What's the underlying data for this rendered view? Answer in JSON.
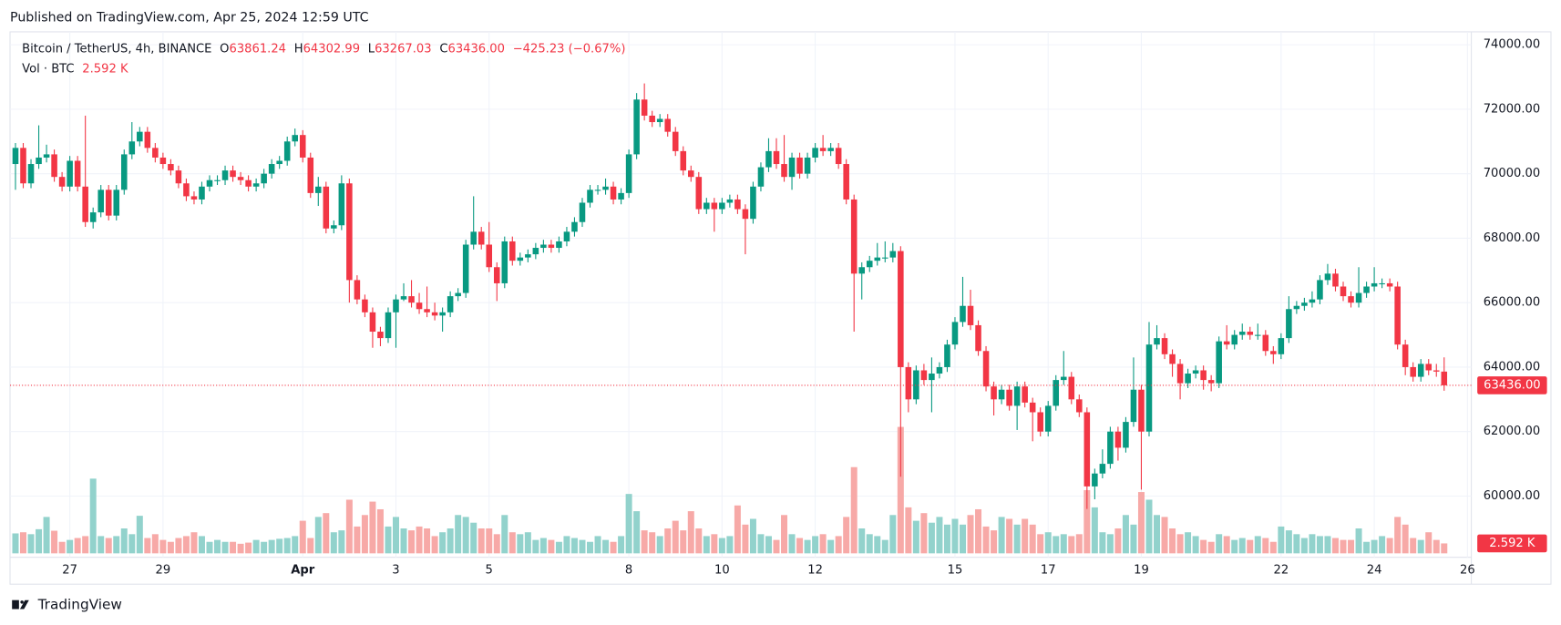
{
  "header": {
    "published": "Published on TradingView.com, Apr 25, 2024 12:59 UTC",
    "brand": "TradingView"
  },
  "chart_data": {
    "type": "candlestick",
    "title": "Bitcoin / TetherUS, 4h, BINANCE",
    "legend_prefixes": [
      "O",
      "H",
      "L",
      "C"
    ],
    "change": "−425.23 (−0.67%)",
    "close_label": "63436.00",
    "volume_title": "Vol · BTC",
    "volume_label": "2.592 K",
    "up_color": "#089981",
    "down_color": "#f23645",
    "volume_up_color": "#92d2cc",
    "volume_down_color": "#f7a9a7",
    "open": [
      70300,
      70800,
      69700,
      70300,
      70500,
      70600,
      69900,
      69600,
      70400,
      69600,
      68500,
      68800,
      69500,
      68700,
      69500,
      70600,
      71000,
      71300,
      70800,
      70500,
      70300,
      70100,
      69700,
      69300,
      69200,
      69600,
      69800,
      69800,
      70100,
      69900,
      69800,
      69600,
      69700,
      70000,
      70300,
      70400,
      71000,
      71200,
      70500,
      69400,
      69600,
      68300,
      68400,
      69700,
      66700,
      66100,
      65700,
      65100,
      64900,
      65700,
      66100,
      66200,
      66000,
      65800,
      65700,
      65600,
      65700,
      66200,
      66300,
      67800,
      68200,
      67800,
      67100,
      66600,
      67900,
      67300,
      67400,
      67500,
      67700,
      67800,
      67700,
      67900,
      68200,
      68500,
      69100,
      69500,
      69500,
      69600,
      69200,
      69400,
      70600,
      72300,
      71800,
      71600,
      71700,
      71300,
      70700,
      70100,
      69900,
      68900,
      69100,
      68900,
      69100,
      69200,
      68900,
      68600,
      69600,
      70200,
      70700,
      70300,
      69900,
      70500,
      70000,
      70500,
      70800,
      70700,
      70800,
      70300,
      69200,
      66900,
      67100,
      67300,
      67400,
      67400,
      67600,
      64000,
      63000,
      63900,
      63600,
      63800,
      64000,
      64700,
      65400,
      65900,
      65300,
      64500,
      63400,
      63000,
      63300,
      62800,
      63400,
      62900,
      62600,
      62000,
      62800,
      63600,
      63700,
      63000,
      62600,
      60300,
      60700,
      61000,
      62000,
      61500,
      62300,
      63300,
      62000,
      64700,
      64900,
      64400,
      64100,
      63500,
      63800,
      63900,
      63600,
      63500,
      64800,
      64700,
      65000,
      65100,
      65000,
      65000,
      64500,
      64400,
      64900,
      65800,
      65900,
      66000,
      66100,
      66700,
      66900,
      66500,
      66200,
      66000,
      66300,
      66500,
      66600,
      66600,
      66500,
      64700,
      64000,
      63700,
      64100,
      63900,
      63861.24
    ],
    "high": [
      70950,
      70950,
      70450,
      71500,
      70900,
      70750,
      70050,
      70550,
      70550,
      71800,
      68950,
      69650,
      69650,
      69650,
      70750,
      71600,
      71450,
      71450,
      70950,
      70650,
      70450,
      70250,
      69850,
      69450,
      69750,
      69950,
      69950,
      70250,
      70250,
      70050,
      69950,
      69850,
      70150,
      70450,
      70550,
      71150,
      71400,
      71350,
      70650,
      69900,
      69750,
      68550,
      69950,
      69850,
      66850,
      66250,
      65850,
      65250,
      65850,
      66250,
      66600,
      66700,
      66300,
      66500,
      66000,
      65850,
      66350,
      66450,
      67950,
      69300,
      68350,
      68500,
      67250,
      68050,
      68050,
      67550,
      67650,
      67850,
      67950,
      67950,
      68050,
      68350,
      68650,
      69250,
      69650,
      69650,
      69850,
      69750,
      69550,
      70750,
      72500,
      72800,
      71950,
      71850,
      71850,
      71450,
      70850,
      70250,
      70050,
      69250,
      69250,
      69250,
      69350,
      69350,
      69050,
      69750,
      70350,
      71100,
      71100,
      71200,
      70650,
      70650,
      70650,
      70950,
      71200,
      70950,
      70950,
      70450,
      69350,
      67250,
      67450,
      67850,
      67900,
      67850,
      67750,
      64150,
      64050,
      64100,
      64300,
      64150,
      64850,
      65550,
      66800,
      66400,
      65450,
      64650,
      63550,
      63450,
      63450,
      63550,
      63550,
      63050,
      62750,
      62950,
      63750,
      64500,
      63850,
      63150,
      62750,
      60850,
      61450,
      62150,
      62150,
      62450,
      64300,
      63450,
      65400,
      65300,
      65050,
      64550,
      64250,
      63950,
      64050,
      64050,
      63750,
      64950,
      65300,
      65150,
      65350,
      65250,
      65350,
      65150,
      64650,
      65050,
      66200,
      66050,
      66150,
      66350,
      66850,
      67200,
      67050,
      66650,
      66350,
      67100,
      66650,
      67100,
      66750,
      66750,
      66650,
      64850,
      64150,
      64250,
      64250,
      64100,
      64302.99
    ],
    "low": [
      69500,
      69550,
      69550,
      70150,
      70350,
      69750,
      69450,
      69450,
      69450,
      68350,
      68300,
      68650,
      68550,
      68550,
      69350,
      70450,
      70850,
      70650,
      70350,
      70150,
      69950,
      69550,
      69150,
      69050,
      69050,
      69450,
      69650,
      69650,
      69750,
      69650,
      69450,
      69450,
      69550,
      69850,
      70150,
      70250,
      70850,
      70350,
      69250,
      69000,
      68150,
      68150,
      68250,
      66000,
      65950,
      65550,
      64600,
      64650,
      64750,
      64600,
      66050,
      65850,
      65650,
      65550,
      65450,
      65100,
      65550,
      66050,
      66150,
      67650,
      67650,
      66950,
      66050,
      66450,
      67150,
      67150,
      67250,
      67350,
      67550,
      67550,
      67550,
      67750,
      68050,
      68350,
      68950,
      69350,
      69350,
      69050,
      69050,
      69250,
      70450,
      71650,
      71450,
      71450,
      71150,
      70550,
      69950,
      69750,
      68750,
      68750,
      68200,
      68750,
      68950,
      68750,
      67500,
      68450,
      69450,
      70050,
      70150,
      69750,
      69500,
      69850,
      69850,
      70350,
      70550,
      70550,
      70150,
      69050,
      65100,
      66100,
      66950,
      67150,
      67250,
      67250,
      60600,
      62600,
      62850,
      63450,
      62600,
      63650,
      63850,
      64550,
      65250,
      65150,
      64350,
      63250,
      62500,
      62850,
      62650,
      62050,
      62750,
      61700,
      61850,
      61850,
      62650,
      63450,
      62850,
      62450,
      59600,
      59900,
      60550,
      60850,
      61100,
      61350,
      62150,
      60200,
      61850,
      64550,
      64250,
      63700,
      63000,
      63350,
      63650,
      63300,
      63250,
      63350,
      64550,
      64550,
      64850,
      64850,
      64850,
      64350,
      64100,
      64250,
      64750,
      65650,
      65750,
      65850,
      65950,
      66550,
      66350,
      66050,
      65850,
      65850,
      66150,
      66350,
      66450,
      66350,
      64550,
      63750,
      63550,
      63550,
      63750,
      63700,
      63267.03
    ],
    "close": [
      70800,
      69700,
      70300,
      70500,
      70600,
      69900,
      69600,
      70400,
      69600,
      68500,
      68800,
      69500,
      68700,
      69500,
      70600,
      71000,
      71300,
      70800,
      70500,
      70300,
      70100,
      69700,
      69300,
      69200,
      69600,
      69800,
      69800,
      70100,
      69900,
      69800,
      69600,
      69700,
      70000,
      70300,
      70400,
      71000,
      71200,
      70500,
      69400,
      69600,
      68300,
      68400,
      69700,
      66700,
      66100,
      65700,
      65100,
      64900,
      65700,
      66100,
      66200,
      66000,
      65800,
      65700,
      65600,
      65700,
      66200,
      66300,
      67800,
      68200,
      67800,
      67100,
      66600,
      67900,
      67300,
      67400,
      67500,
      67700,
      67800,
      67700,
      67900,
      68200,
      68500,
      69100,
      69500,
      69500,
      69600,
      69200,
      69400,
      70600,
      72300,
      71800,
      71600,
      71700,
      71300,
      70700,
      70100,
      69900,
      68900,
      69100,
      68900,
      69100,
      69200,
      68900,
      68600,
      69600,
      70200,
      70700,
      70300,
      69900,
      70500,
      70000,
      70500,
      70800,
      70700,
      70800,
      70300,
      69200,
      66900,
      67100,
      67300,
      67400,
      67400,
      67600,
      64000,
      63000,
      63900,
      63600,
      63800,
      64000,
      64700,
      65400,
      65900,
      65300,
      64500,
      63400,
      63000,
      63300,
      62800,
      63400,
      62900,
      62600,
      62000,
      62800,
      63600,
      63700,
      63000,
      62600,
      60300,
      60700,
      61000,
      62000,
      61500,
      62300,
      63300,
      62000,
      64700,
      64900,
      64400,
      64100,
      63500,
      63800,
      63900,
      63600,
      63500,
      64800,
      64700,
      65000,
      65100,
      65000,
      65000,
      64500,
      64400,
      64900,
      65800,
      65900,
      66000,
      66100,
      66700,
      66900,
      66500,
      66200,
      66000,
      66300,
      66500,
      66600,
      66600,
      66500,
      64700,
      64000,
      63700,
      64100,
      63900,
      63861.24,
      63436
    ],
    "volume": [
      5200,
      5500,
      5000,
      6300,
      9500,
      5900,
      3000,
      3500,
      4000,
      4500,
      19500,
      4500,
      4000,
      4500,
      6500,
      5000,
      9800,
      4000,
      5000,
      3500,
      3000,
      4000,
      4500,
      5500,
      4500,
      3000,
      3500,
      3000,
      3000,
      2500,
      2800,
      3500,
      3000,
      3500,
      3800,
      4000,
      4500,
      8500,
      4000,
      9500,
      10500,
      5500,
      6000,
      14000,
      7000,
      10000,
      13500,
      11500,
      7000,
      9500,
      6500,
      6000,
      7000,
      6500,
      4500,
      5500,
      6500,
      10000,
      9500,
      8000,
      6500,
      6500,
      5000,
      10000,
      5500,
      5000,
      5500,
      3500,
      4000,
      3500,
      3000,
      4500,
      4000,
      3500,
      3000,
      4500,
      3500,
      3000,
      4500,
      15500,
      11000,
      6000,
      5500,
      4500,
      6500,
      8500,
      6000,
      11000,
      6500,
      4500,
      5000,
      4000,
      4500,
      12500,
      7500,
      9000,
      5000,
      4500,
      3500,
      10000,
      5000,
      4000,
      3500,
      4500,
      5000,
      3500,
      4500,
      9500,
      22500,
      6500,
      5000,
      4500,
      3500,
      10000,
      33000,
      12000,
      8500,
      10500,
      8000,
      9500,
      7500,
      9000,
      7500,
      10000,
      11500,
      7000,
      6000,
      9500,
      9000,
      7500,
      9000,
      7500,
      5000,
      5500,
      4500,
      5000,
      4500,
      5000,
      16500,
      12000,
      5500,
      5000,
      6500,
      10000,
      7500,
      16000,
      14000,
      10000,
      9500,
      6500,
      5000,
      5500,
      4500,
      3500,
      3000,
      5000,
      4500,
      3500,
      4000,
      3500,
      4500,
      4000,
      3000,
      7000,
      6000,
      5000,
      4000,
      5000,
      4500,
      4500,
      4000,
      3500,
      3500,
      6500,
      3000,
      3500,
      4500,
      4000,
      9500,
      7500,
      4000,
      3500,
      5500,
      3500,
      2592
    ],
    "xlim": [
      -0.7,
      187.5
    ],
    "xticks": [
      {
        "value": 7,
        "label": "27"
      },
      {
        "value": 19,
        "label": "29"
      },
      {
        "value": 37,
        "label": "Apr"
      },
      {
        "value": 49,
        "label": "3"
      },
      {
        "value": 61,
        "label": "5"
      },
      {
        "value": 79,
        "label": "8"
      },
      {
        "value": 91,
        "label": "10"
      },
      {
        "value": 103,
        "label": "12"
      },
      {
        "value": 121,
        "label": "15"
      },
      {
        "value": 133,
        "label": "17"
      },
      {
        "value": 145,
        "label": "19"
      },
      {
        "value": 163,
        "label": "22"
      },
      {
        "value": 175,
        "label": "24"
      },
      {
        "value": 187,
        "label": "26"
      }
    ],
    "ylim": [
      58100,
      74400
    ],
    "yticks": [
      {
        "value": 60000,
        "label": "60000.00"
      },
      {
        "value": 62000,
        "label": "62000.00"
      },
      {
        "value": 64000,
        "label": "64000.00"
      },
      {
        "value": 66000,
        "label": "66000.00"
      },
      {
        "value": 68000,
        "label": "68000.00"
      },
      {
        "value": 70000,
        "label": "70000.00"
      },
      {
        "value": 72000,
        "label": "72000.00"
      },
      {
        "value": 74000,
        "label": "74000.00"
      }
    ],
    "volume_ylim": [
      0,
      40000
    ],
    "grid": true
  }
}
